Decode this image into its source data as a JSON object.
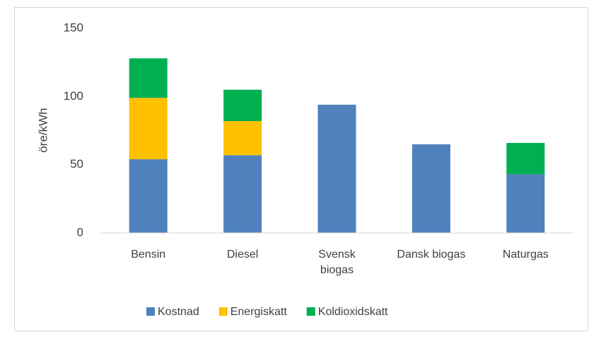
{
  "chart_data": {
    "type": "stacked_bar",
    "ylabel": "öre/kWh",
    "categories": [
      "Bensin",
      "Diesel",
      "Svensk biogas",
      "Dansk biogas",
      "Naturgas"
    ],
    "series": [
      {
        "name": "Kostnad",
        "color": "#4f81bd",
        "values": [
          54,
          57,
          94,
          65,
          43
        ]
      },
      {
        "name": "Energiskatt",
        "color": "#ffc000",
        "values": [
          45,
          25,
          0,
          0,
          0
        ]
      },
      {
        "name": "Koldioxidskatt",
        "color": "#00b050",
        "values": [
          29,
          23,
          0,
          0,
          23
        ]
      }
    ],
    "ylim": [
      0,
      150
    ],
    "yticks": [
      0,
      50,
      100,
      150
    ],
    "grid": false,
    "legend": "bottom"
  }
}
